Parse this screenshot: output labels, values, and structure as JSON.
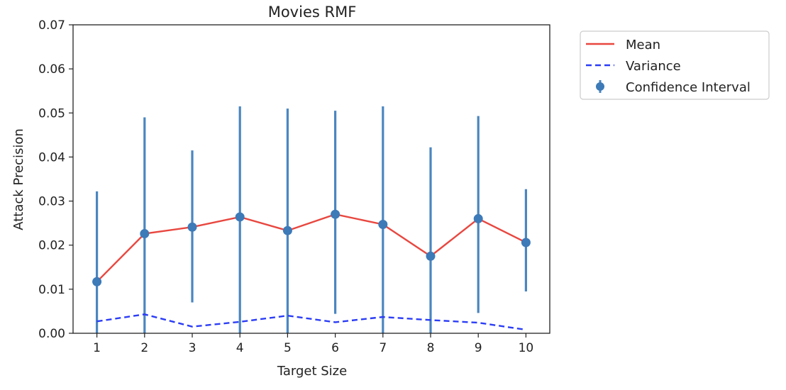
{
  "chart_data": {
    "type": "line",
    "title": "Movies RMF",
    "xlabel": "Target Size",
    "ylabel": "Attack Precision",
    "x": [
      1,
      2,
      3,
      4,
      5,
      6,
      7,
      8,
      9,
      10
    ],
    "xlim": [
      0.5,
      10.5
    ],
    "ylim": [
      0,
      0.07
    ],
    "yticks": [
      "0.00",
      "0.01",
      "0.02",
      "0.03",
      "0.04",
      "0.05",
      "0.06",
      "0.07"
    ],
    "xticks": [
      "1",
      "2",
      "3",
      "4",
      "5",
      "6",
      "7",
      "8",
      "9",
      "10"
    ],
    "grid": false,
    "legend_position": "outside-top-right",
    "series": [
      {
        "name": "Mean",
        "style": "solid",
        "color": "#e8473f",
        "values": [
          0.0117,
          0.0226,
          0.0241,
          0.0264,
          0.0233,
          0.027,
          0.0247,
          0.0175,
          0.026,
          0.0206
        ]
      },
      {
        "name": "Variance",
        "style": "dashed",
        "color": "#2b3df5",
        "values": [
          0.0027,
          0.0043,
          0.0015,
          0.0026,
          0.004,
          0.0025,
          0.0037,
          0.003,
          0.0024,
          0.0008
        ]
      },
      {
        "name": "Confidence Interval",
        "style": "errorbar",
        "color": "#4a86c0",
        "values": [
          0.0117,
          0.0226,
          0.0241,
          0.0264,
          0.0233,
          0.027,
          0.0247,
          0.0175,
          0.026,
          0.0206
        ],
        "lower": [
          0.0,
          0.0,
          0.007,
          0.0,
          0.0,
          0.0044,
          0.0,
          0.0,
          0.0046,
          0.0095
        ],
        "upper": [
          0.0322,
          0.049,
          0.0415,
          0.0515,
          0.051,
          0.0505,
          0.0515,
          0.0422,
          0.0493,
          0.0327
        ]
      }
    ]
  }
}
